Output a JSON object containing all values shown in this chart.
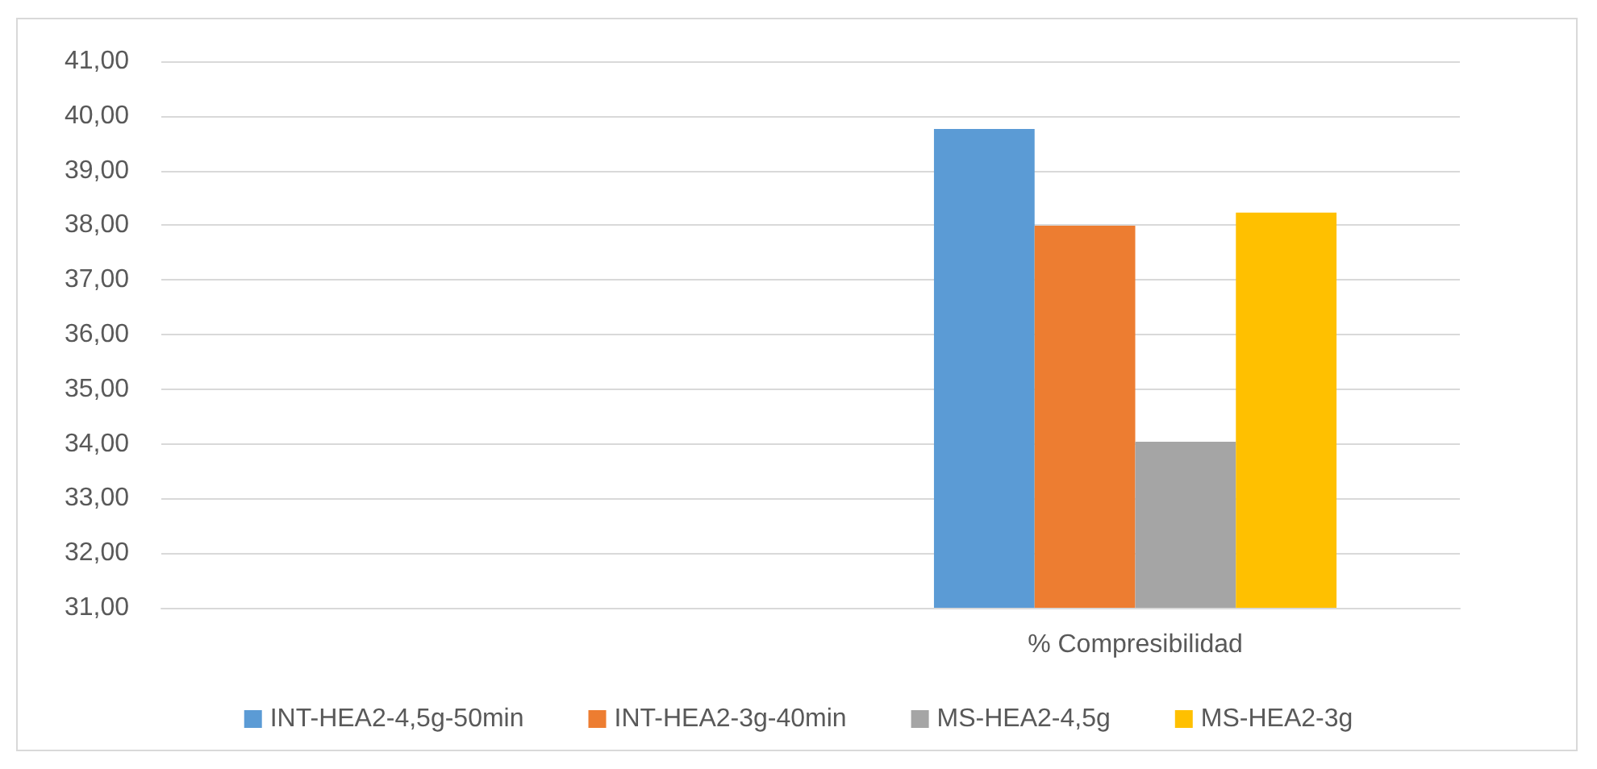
{
  "chart_data": {
    "type": "bar",
    "categories": [
      null,
      "% Compresibilidad"
    ],
    "series": [
      {
        "name": "INT-HEA2-4,5g-50min",
        "color": "#5b9bd5",
        "values": [
          null,
          39.76
        ]
      },
      {
        "name": "INT-HEA2-3g-40min",
        "color": "#ed7d31",
        "values": [
          null,
          37.99
        ]
      },
      {
        "name": "MS-HEA2-4,5g",
        "color": "#a5a5a5",
        "values": [
          null,
          34.04
        ]
      },
      {
        "name": "MS-HEA2-3g",
        "color": "#ffc000",
        "values": [
          null,
          38.23
        ]
      }
    ],
    "ylim": [
      31,
      41
    ],
    "yticks": [
      {
        "value": 31,
        "label": "31,00"
      },
      {
        "value": 32,
        "label": "32,00"
      },
      {
        "value": 33,
        "label": "33,00"
      },
      {
        "value": 34,
        "label": "34,00"
      },
      {
        "value": 35,
        "label": "35,00"
      },
      {
        "value": 36,
        "label": "36,00"
      },
      {
        "value": 37,
        "label": "37,00"
      },
      {
        "value": 38,
        "label": "38,00"
      },
      {
        "value": 39,
        "label": "39,00"
      },
      {
        "value": 40,
        "label": "40,00"
      },
      {
        "value": 41,
        "label": "41,00"
      }
    ],
    "grid": "y",
    "legend": "bottom"
  }
}
